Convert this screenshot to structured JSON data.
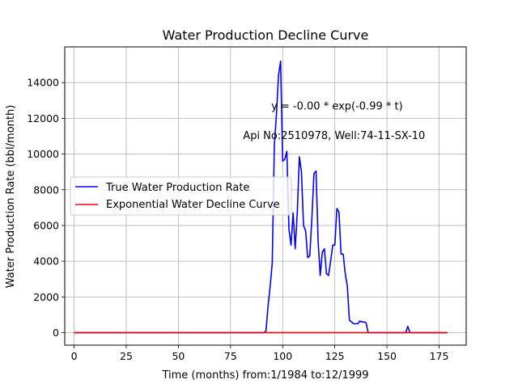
{
  "chart_data": {
    "type": "line",
    "title": "Water Production Decline Curve",
    "xlabel": "Time (months) from:1/1984 to:12/1999",
    "ylabel": "Water Production Rate (bbl/month)",
    "xlim": [
      -4.5,
      188
    ],
    "ylim": [
      -700,
      16000
    ],
    "xticks": [
      0,
      25,
      50,
      75,
      100,
      125,
      150,
      175
    ],
    "yticks": [
      0,
      2000,
      4000,
      6000,
      8000,
      10000,
      12000,
      14000
    ],
    "grid": true,
    "legend_position": "center-left",
    "annotations": [
      {
        "text": "y = -0.00 * exp(-0.99 * t)",
        "x": 94.5,
        "y": 12500
      },
      {
        "text": "Api No:2510978, Well:74-11-SX-10",
        "x": 81,
        "y": 10850
      }
    ],
    "series": [
      {
        "name": "True Water Production Rate",
        "color": "#0000ff",
        "x": [
          0,
          91,
          92,
          93,
          94,
          95,
          96,
          97,
          98,
          99,
          100,
          101,
          102,
          103,
          104,
          105,
          106,
          107,
          108,
          109,
          110,
          111,
          112,
          113,
          114,
          115,
          116,
          117,
          118,
          119,
          120,
          121,
          122,
          123,
          124,
          125,
          126,
          127,
          128,
          129,
          130,
          131,
          132,
          133,
          134,
          135,
          136,
          137,
          138,
          139,
          140,
          141,
          142,
          143,
          158,
          159,
          160,
          161,
          162,
          179
        ],
        "y": [
          0,
          0,
          100,
          1500,
          2600,
          3900,
          10500,
          12200,
          14400,
          15200,
          9600,
          9700,
          10150,
          5800,
          4900,
          6700,
          4700,
          6700,
          9850,
          9000,
          6000,
          5700,
          4200,
          4300,
          6400,
          8900,
          9050,
          5100,
          3200,
          4500,
          4700,
          3300,
          3200,
          4000,
          4900,
          4900,
          6950,
          6750,
          4400,
          4400,
          3300,
          2600,
          700,
          600,
          500,
          500,
          500,
          650,
          600,
          600,
          550,
          0,
          0,
          0,
          0,
          0,
          350,
          0,
          0,
          0
        ]
      },
      {
        "name": "Exponential Water Decline Curve",
        "color": "#ff0000",
        "x": [
          0,
          179
        ],
        "y": [
          0,
          0
        ]
      }
    ]
  }
}
